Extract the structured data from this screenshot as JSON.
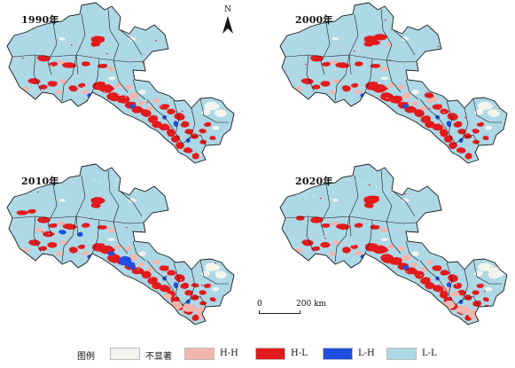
{
  "panels": [
    {
      "year_label": "1990年",
      "variant": "1990"
    },
    {
      "year_label": "2000年",
      "variant": "2000"
    },
    {
      "year_label": "2010年",
      "variant": "2010"
    },
    {
      "year_label": "2020年",
      "variant": "2020"
    }
  ],
  "north_arrow": {
    "label": "N"
  },
  "scale_bar": {
    "start": "0",
    "end": "200 km"
  },
  "legend": {
    "title": "图例",
    "items": [
      {
        "key": "ns",
        "label": "不显著",
        "color": "#f3f4ee"
      },
      {
        "key": "hh",
        "label": "H-H",
        "color": "#f2b6ad"
      },
      {
        "key": "hl",
        "label": "H-L",
        "color": "#e31a1c"
      },
      {
        "key": "lh",
        "label": "L-H",
        "color": "#1f4fe0"
      },
      {
        "key": "ll",
        "label": "L-L",
        "color": "#add8e6"
      }
    ]
  },
  "colors": {
    "border": "#1a1a1a",
    "background": "#add8e6"
  }
}
